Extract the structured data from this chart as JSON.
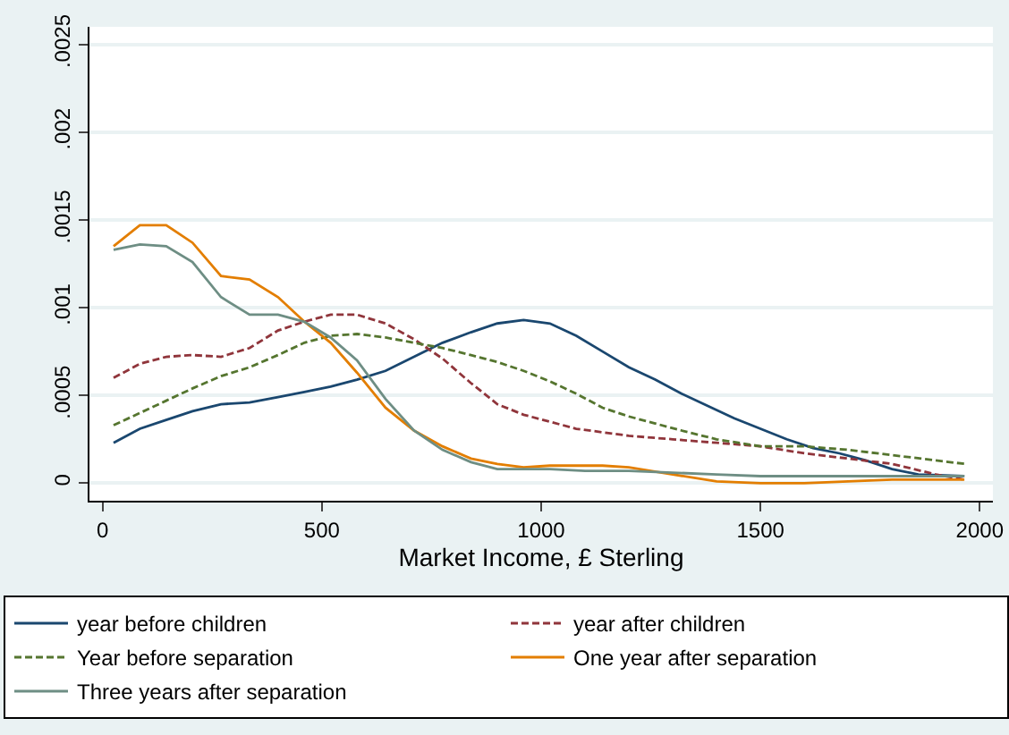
{
  "chart_data": {
    "type": "line",
    "xlabel": "Market Income, £ Sterling",
    "xlim": [
      -30,
      2030
    ],
    "xticks": [
      0,
      500,
      1000,
      1500,
      2000
    ],
    "ylim": [
      -0.0001,
      0.0026
    ],
    "yticks": [
      0,
      {
        "value": 0.0005,
        "label": ".0005"
      },
      {
        "value": 0.001,
        "label": ".001"
      },
      {
        "value": 0.0015,
        "label": ".0015"
      },
      {
        "value": 0.002,
        "label": ".002"
      },
      {
        "value": 0.0025,
        "label": ".0025"
      }
    ],
    "grid": "y",
    "legend": "bottom",
    "marker": "none",
    "series": [
      {
        "name": "year before children",
        "color": "#1a476f",
        "line_style": "solid",
        "x": [
          25,
          85,
          145,
          205,
          270,
          335,
          400,
          460,
          520,
          580,
          645,
          710,
          775,
          840,
          900,
          960,
          1020,
          1080,
          1140,
          1200,
          1260,
          1320,
          1380,
          1440,
          1500,
          1560,
          1620,
          1680,
          1740,
          1800,
          1860,
          1965
        ],
        "values": [
          0.00023,
          0.00031,
          0.00036,
          0.00041,
          0.00045,
          0.00046,
          0.00049,
          0.00052,
          0.00055,
          0.00059,
          0.00064,
          0.00072,
          0.0008,
          0.00086,
          0.00091,
          0.00093,
          0.00091,
          0.00084,
          0.00075,
          0.00066,
          0.00059,
          0.00051,
          0.00044,
          0.00037,
          0.00031,
          0.00025,
          0.0002,
          0.00017,
          0.00013,
          8e-05,
          5e-05,
          4e-05
        ]
      },
      {
        "name": "year after children",
        "color": "#90353b",
        "line_style": "dashed",
        "x": [
          25,
          85,
          145,
          205,
          270,
          335,
          400,
          460,
          520,
          580,
          645,
          710,
          775,
          840,
          900,
          960,
          1020,
          1080,
          1140,
          1200,
          1300,
          1400,
          1500,
          1600,
          1700,
          1800,
          1900,
          1965
        ],
        "values": [
          0.0006,
          0.00068,
          0.00072,
          0.00073,
          0.00072,
          0.00077,
          0.00087,
          0.00092,
          0.00096,
          0.00096,
          0.00091,
          0.00082,
          0.00071,
          0.00057,
          0.00045,
          0.00039,
          0.00035,
          0.00031,
          0.00029,
          0.00027,
          0.00025,
          0.00023,
          0.00021,
          0.00017,
          0.00014,
          0.00011,
          5e-05,
          2e-05
        ]
      },
      {
        "name": "Year before separation",
        "color": "#55752f",
        "line_style": "dashed",
        "x": [
          25,
          85,
          145,
          205,
          270,
          335,
          400,
          460,
          520,
          580,
          645,
          710,
          775,
          840,
          900,
          960,
          1020,
          1080,
          1140,
          1200,
          1260,
          1320,
          1400,
          1500,
          1600,
          1700,
          1800,
          1900,
          1965
        ],
        "values": [
          0.00033,
          0.0004,
          0.00047,
          0.00054,
          0.00061,
          0.00066,
          0.00073,
          0.0008,
          0.00084,
          0.00085,
          0.00083,
          0.0008,
          0.00077,
          0.00073,
          0.00069,
          0.00064,
          0.00058,
          0.00051,
          0.00043,
          0.00038,
          0.00034,
          0.0003,
          0.00025,
          0.00021,
          0.00021,
          0.00019,
          0.00016,
          0.00013,
          0.00011
        ]
      },
      {
        "name": "One year after separation",
        "color": "#e37e00",
        "line_style": "solid",
        "x": [
          25,
          85,
          145,
          205,
          270,
          335,
          400,
          460,
          520,
          580,
          645,
          710,
          775,
          840,
          900,
          960,
          1020,
          1080,
          1140,
          1200,
          1300,
          1400,
          1500,
          1600,
          1700,
          1800,
          1965
        ],
        "values": [
          0.00135,
          0.00147,
          0.00147,
          0.00137,
          0.00118,
          0.00116,
          0.00106,
          0.00092,
          0.0008,
          0.00063,
          0.00043,
          0.0003,
          0.00021,
          0.00014,
          0.00011,
          9e-05,
          0.0001,
          0.0001,
          0.0001,
          9e-05,
          5e-05,
          1e-05,
          0,
          0,
          1e-05,
          2e-05,
          2e-05
        ]
      },
      {
        "name": "Three years after separation",
        "color": "#6e8e84",
        "line_style": "solid",
        "x": [
          25,
          85,
          145,
          205,
          270,
          335,
          400,
          460,
          520,
          580,
          645,
          710,
          775,
          840,
          900,
          960,
          1020,
          1100,
          1200,
          1300,
          1400,
          1500,
          1600,
          1700,
          1800,
          1965
        ],
        "values": [
          0.00133,
          0.00136,
          0.00135,
          0.00126,
          0.00106,
          0.00096,
          0.00096,
          0.00092,
          0.00083,
          0.0007,
          0.00048,
          0.0003,
          0.00019,
          0.00012,
          8e-05,
          8e-05,
          8e-05,
          7e-05,
          7e-05,
          6e-05,
          5e-05,
          4e-05,
          4e-05,
          4e-05,
          4e-05,
          4e-05
        ]
      }
    ]
  }
}
